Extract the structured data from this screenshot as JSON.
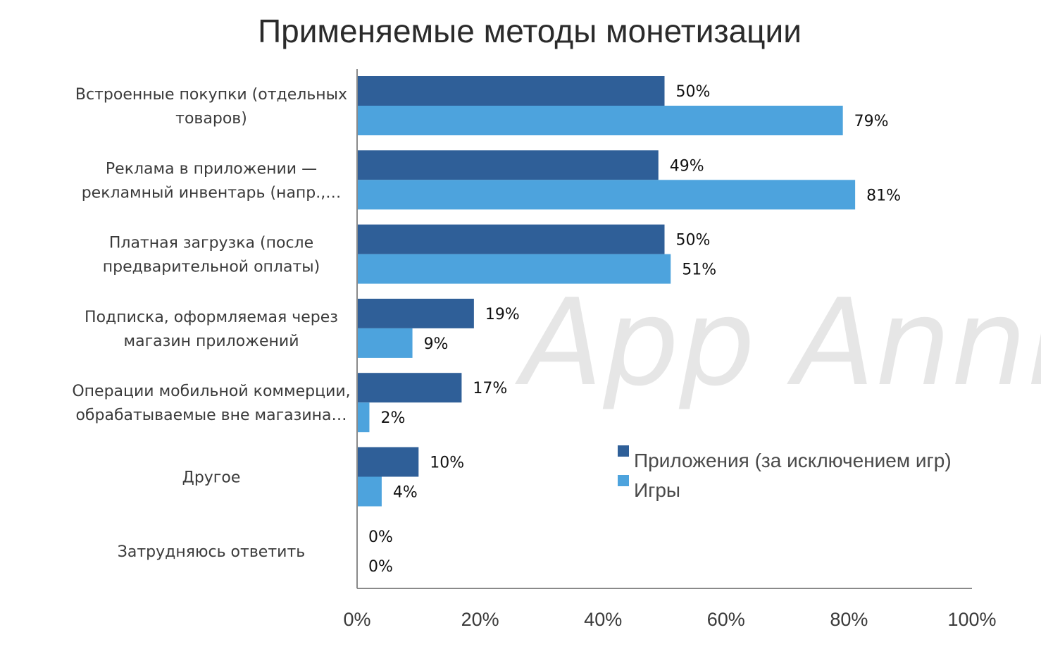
{
  "watermark": "App Annie",
  "chart_data": {
    "type": "bar",
    "orientation": "horizontal",
    "title": "Применяемые методы монетизации",
    "categories": [
      [
        "Встроенные покупки (отдельных",
        "товаров)"
      ],
      [
        "Реклама в приложении —",
        "рекламный инвентарь (напр.,…"
      ],
      [
        "Платная загрузка (после",
        "предварительной оплаты)"
      ],
      [
        "Подписка, оформляемая через",
        "магазин приложений"
      ],
      [
        "Операции мобильной коммерции,",
        "обрабатываемые вне магазина…"
      ],
      [
        "Другое"
      ],
      [
        "Затрудняюсь ответить"
      ]
    ],
    "series": [
      {
        "name": "Приложения (за исключением игр)",
        "color": "#2f5f98",
        "values": [
          50,
          49,
          50,
          19,
          17,
          10,
          0
        ],
        "labels": [
          "50%",
          "49%",
          "50%",
          "19%",
          "17%",
          "10%",
          "0%"
        ]
      },
      {
        "name": "Игры",
        "color": "#4da3dd",
        "values": [
          79,
          81,
          51,
          9,
          2,
          4,
          0
        ],
        "labels": [
          "79%",
          "81%",
          "51%",
          "9%",
          "2%",
          "4%",
          "0%"
        ]
      }
    ],
    "xlim": [
      0,
      100
    ],
    "xticks": [
      0,
      20,
      40,
      60,
      80,
      100
    ],
    "xtick_labels": [
      "0%",
      "20%",
      "40%",
      "60%",
      "80%",
      "100%"
    ],
    "grid": false,
    "legend_position": "right-middle"
  }
}
